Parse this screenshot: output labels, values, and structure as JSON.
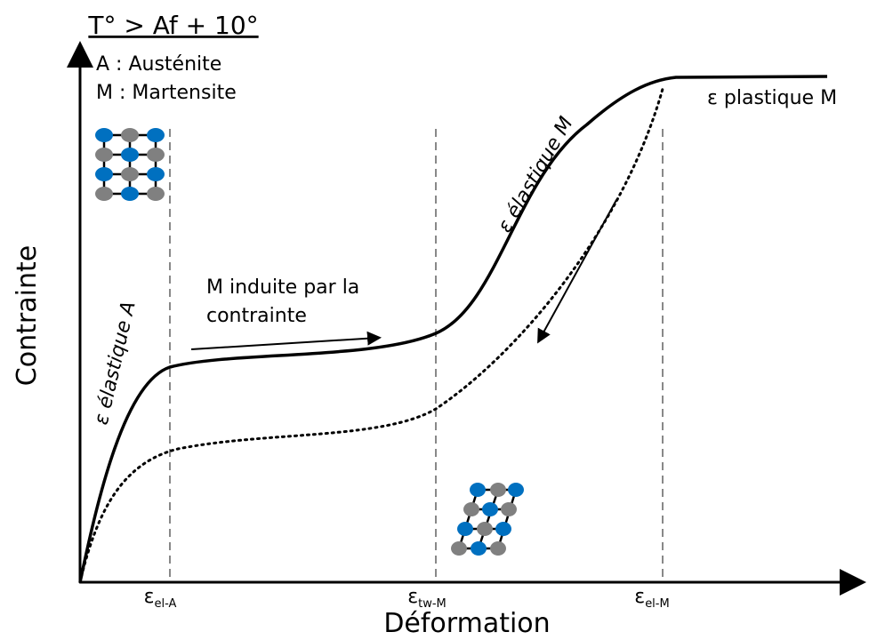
{
  "header": {
    "title": "T° > Af + 10°"
  },
  "legend": [
    "A : Austénite",
    "M : Martensite"
  ],
  "axes": {
    "y_label": "Contrainte",
    "x_label": "Déformation"
  },
  "annotations": {
    "elastic_a": "ε élastique A",
    "induced": [
      "M induite par la",
      "contrainte"
    ],
    "elastic_m": "ε élastique M",
    "plastic_m": "ε plastique M"
  },
  "markers": [
    {
      "symbol": "ε",
      "subscript": "el-A"
    },
    {
      "symbol": "ε",
      "subscript": "tw-M"
    },
    {
      "symbol": "ε",
      "subscript": "el-M"
    }
  ]
}
